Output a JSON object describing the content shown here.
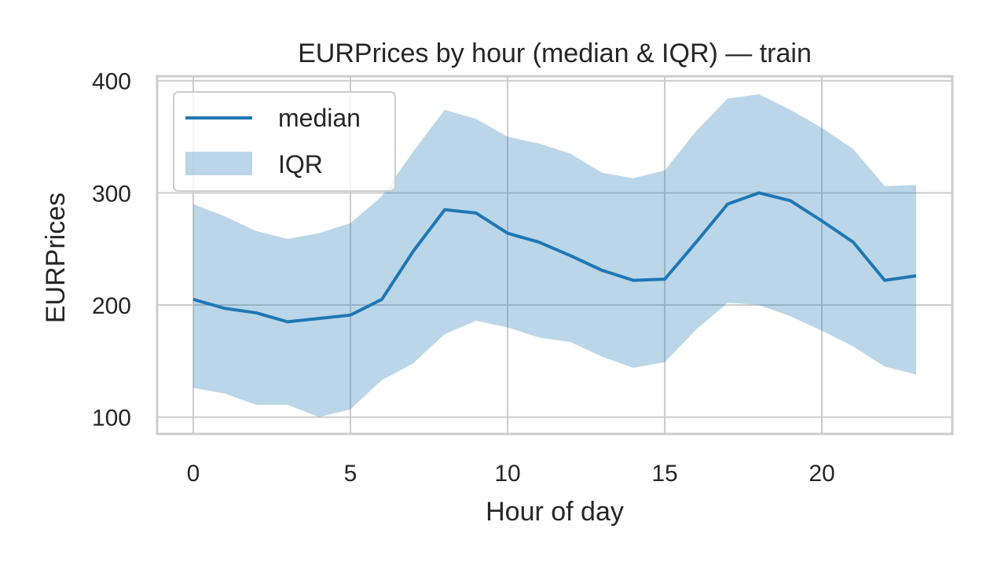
{
  "chart_data": {
    "type": "line",
    "title": "EURPrices by hour (median & IQR) — train",
    "xlabel": "Hour of day",
    "ylabel": "EURPrices",
    "xlim": [
      -1.15,
      24.15
    ],
    "ylim": [
      85,
      404
    ],
    "xticks": [
      0,
      5,
      10,
      15,
      20
    ],
    "yticks": [
      100,
      200,
      300,
      400
    ],
    "grid": true,
    "legend_position": "upper-left",
    "x": [
      0,
      1,
      2,
      3,
      4,
      5,
      6,
      7,
      8,
      9,
      10,
      11,
      12,
      13,
      14,
      15,
      16,
      17,
      18,
      19,
      20,
      21,
      22,
      23
    ],
    "series": [
      {
        "name": "median",
        "kind": "line",
        "color": "#1f77b4",
        "values": [
          205,
          197,
          193,
          185,
          188,
          191,
          205,
          248,
          285,
          282,
          264,
          256,
          244,
          231,
          222,
          223,
          256,
          290,
          300,
          293,
          275,
          256,
          222,
          226
        ]
      },
      {
        "name": "IQR",
        "kind": "band",
        "color": "#1f77b4",
        "opacity": 0.3,
        "lower": [
          126,
          121,
          111,
          111,
          100,
          107,
          133,
          148,
          174,
          186,
          180,
          171,
          167,
          154,
          144,
          149,
          178,
          202,
          200,
          190,
          177,
          163,
          145,
          138
        ],
        "upper": [
          290,
          279,
          266,
          259,
          264,
          273,
          297,
          337,
          374,
          366,
          350,
          344,
          335,
          318,
          313,
          320,
          355,
          384,
          388,
          374,
          358,
          339,
          306,
          307
        ]
      }
    ]
  }
}
